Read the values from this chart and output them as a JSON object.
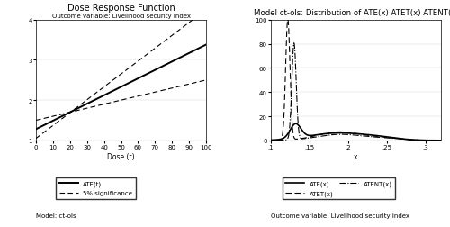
{
  "left_title": "Dose Response Function",
  "left_subtitle": "Outcome variable: Livelihood security index",
  "left_xlabel": "Dose (t)",
  "left_footnote": "Model: ct-ols",
  "left_xlim": [
    0,
    100
  ],
  "left_ylim": [
    1,
    4
  ],
  "left_yticks": [
    1,
    2,
    3,
    4
  ],
  "left_xticks": [
    0,
    10,
    20,
    30,
    40,
    50,
    60,
    70,
    80,
    90,
    100
  ],
  "ate_slope": 0.021,
  "ate_intercept": 1.28,
  "ci_upper_slope": 0.032,
  "ci_upper_intercept": 1.05,
  "ci_lower_slope": 0.01,
  "ci_lower_intercept": 1.5,
  "right_title": "Model ct-ols: Distribution of ATE(x) ATET(x) ATENT(x)",
  "right_xlabel": "x",
  "right_footnote": "Outcome variable: Livelihood security index",
  "right_xlim": [
    0.1,
    0.32
  ],
  "right_ylim": [
    0,
    100
  ],
  "right_xticks": [
    0.1,
    0.15,
    0.2,
    0.25,
    0.3
  ],
  "right_xticklabels": [
    ".1",
    ".15",
    ".2",
    ".25",
    ".3"
  ],
  "right_yticks": [
    0,
    20,
    40,
    60,
    80,
    100
  ]
}
